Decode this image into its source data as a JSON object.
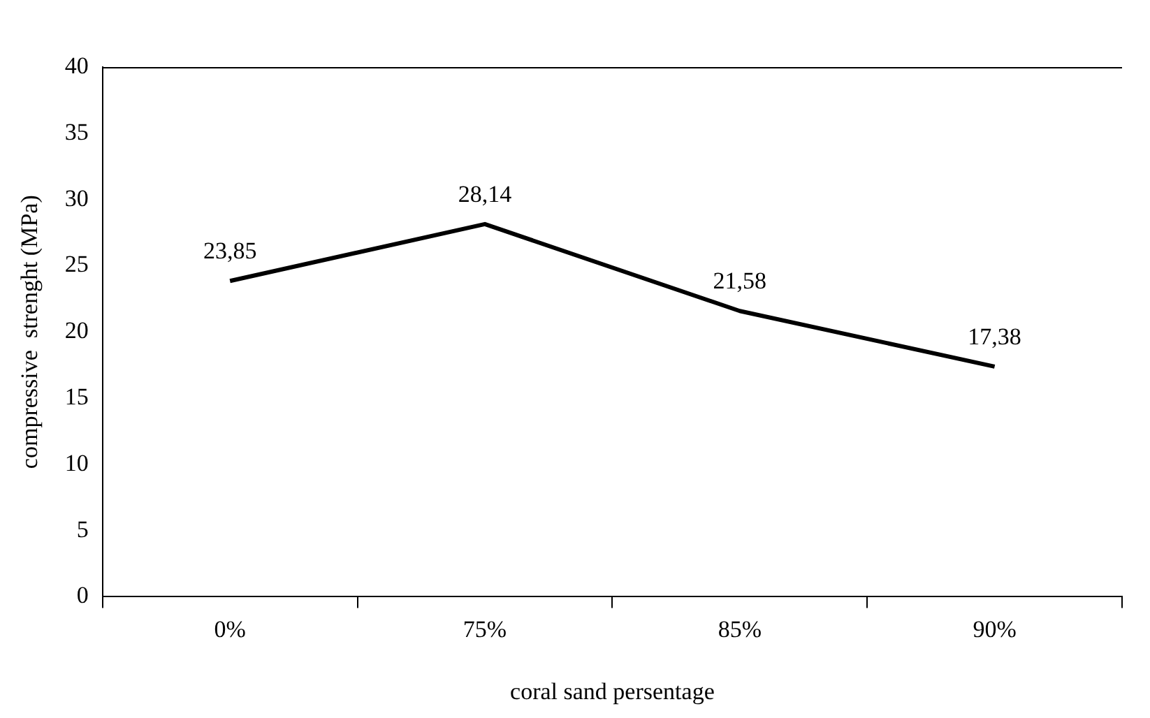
{
  "chart_data": {
    "type": "line",
    "xlabel": "coral sand persentage",
    "ylabel": "compressive  strenght (MPa)",
    "categories": [
      "0%",
      "75%",
      "85%",
      "90%"
    ],
    "series": [
      {
        "color": "#000000",
        "values": [
          23.85,
          28.14,
          21.58,
          17.38
        ],
        "value_labels": [
          "23,85",
          "28,14",
          "21,58",
          "17,38"
        ]
      }
    ],
    "ylim": [
      0,
      40
    ],
    "yticks": [
      0,
      5,
      10,
      15,
      20,
      25,
      30,
      35,
      40
    ],
    "grid": false,
    "legend": false,
    "marker": "none",
    "line_style": "solid"
  }
}
